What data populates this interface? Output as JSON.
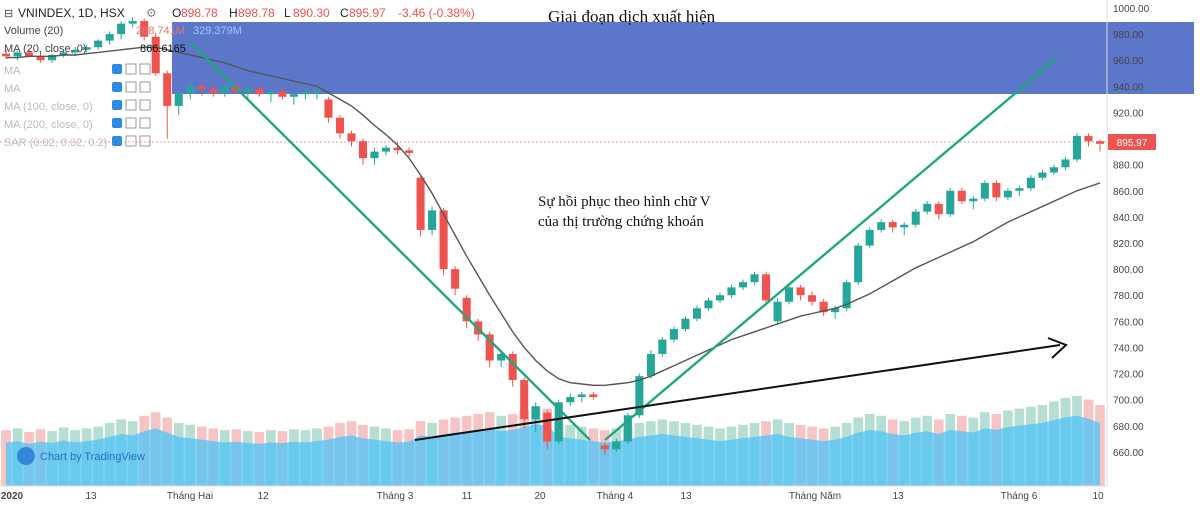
{
  "legend": {
    "symbol": "VNINDEX, 1D, HSX",
    "open_label": "O",
    "open": "898.78",
    "high_label": "H",
    "high": "898.78",
    "low_label": "L",
    "low": "890.30",
    "close_label": "C",
    "close": "895.97",
    "change": "-3.46 (-0.38%)",
    "volume_label": "Volume (20)",
    "vol_val1": "288.741M",
    "vol_val2": "329.379M",
    "ma_close_label": "MA (20, close, 0)",
    "ma_close_value": "866.6165",
    "indicators": [
      "MA",
      "MA",
      "MA (100, close, 0)",
      "MA (200, close, 0)",
      "SAR (0.02, 0.02, 0.2)"
    ]
  },
  "annotations": {
    "top_title": "Giai đoạn dịch xuất hiện",
    "v_line1": "Sự hồi phục theo hình chữ V",
    "v_line2": "của thị trường chứng khoán"
  },
  "watermark": "Chart by TradingView",
  "price_tag": "895.97",
  "colors": {
    "up": "#26a69a",
    "down": "#ef5350",
    "band": "#3f5fbf",
    "trend": "#1fa87e",
    "ma": "#555555",
    "volume": "#4fc3f7",
    "price_line": "#ef9a9a"
  },
  "chart_data": {
    "type": "candlestick",
    "ylim": [
      640,
      1000
    ],
    "y_ticks": [
      "660.00",
      "680.00",
      "700.00",
      "720.00",
      "740.00",
      "760.00",
      "780.00",
      "800.00",
      "820.00",
      "840.00",
      "860.00",
      "880.00",
      "900.00",
      "920.00",
      "940.00",
      "960.00",
      "980.00",
      "1000.00"
    ],
    "x_ticks": [
      "2020",
      "13",
      "Tháng Hai",
      "12",
      "Tháng 3",
      "11",
      "20",
      "Tháng 4",
      "13",
      "Tháng Năm",
      "13",
      "Tháng 6",
      "10"
    ],
    "candles": [
      [
        965,
        968,
        961,
        963
      ],
      [
        963,
        967,
        960,
        966
      ],
      [
        966,
        969,
        962,
        963
      ],
      [
        963,
        966,
        958,
        960
      ],
      [
        960,
        965,
        958,
        964
      ],
      [
        964,
        968,
        962,
        966
      ],
      [
        966,
        970,
        963,
        968
      ],
      [
        968,
        972,
        966,
        970
      ],
      [
        970,
        976,
        968,
        975
      ],
      [
        975,
        982,
        972,
        980
      ],
      [
        980,
        990,
        976,
        988
      ],
      [
        988,
        993,
        985,
        990
      ],
      [
        990,
        992,
        975,
        978
      ],
      [
        978,
        980,
        948,
        950
      ],
      [
        950,
        952,
        900,
        925
      ],
      [
        925,
        937,
        918,
        935
      ],
      [
        935,
        942,
        930,
        940
      ],
      [
        940,
        944,
        933,
        938
      ],
      [
        938,
        941,
        932,
        935
      ],
      [
        935,
        942,
        932,
        940
      ],
      [
        940,
        942,
        934,
        936
      ],
      [
        936,
        940,
        930,
        938
      ],
      [
        938,
        940,
        932,
        934
      ],
      [
        934,
        938,
        928,
        936
      ],
      [
        936,
        939,
        930,
        932
      ],
      [
        932,
        936,
        926,
        934
      ],
      [
        934,
        938,
        930,
        936
      ],
      [
        935,
        938,
        930,
        937
      ],
      [
        930,
        932,
        912,
        916
      ],
      [
        916,
        918,
        900,
        904
      ],
      [
        904,
        906,
        894,
        898
      ],
      [
        898,
        900,
        880,
        885
      ],
      [
        885,
        893,
        880,
        890
      ],
      [
        890,
        895,
        887,
        893
      ],
      [
        893,
        897,
        888,
        891
      ],
      [
        891,
        893,
        886,
        889
      ],
      [
        870,
        872,
        825,
        830
      ],
      [
        830,
        848,
        826,
        845
      ],
      [
        845,
        847,
        795,
        800
      ],
      [
        800,
        802,
        780,
        785
      ],
      [
        778,
        780,
        755,
        760
      ],
      [
        760,
        762,
        745,
        750
      ],
      [
        750,
        752,
        725,
        730
      ],
      [
        730,
        738,
        725,
        735
      ],
      [
        735,
        737,
        710,
        715
      ],
      [
        715,
        717,
        678,
        685
      ],
      [
        685,
        698,
        675,
        695
      ],
      [
        690,
        692,
        662,
        668
      ],
      [
        668,
        700,
        666,
        698
      ],
      [
        698,
        705,
        695,
        702
      ],
      [
        702,
        706,
        698,
        704
      ],
      [
        704,
        706,
        700,
        702
      ],
      [
        665,
        667,
        658,
        662
      ],
      [
        662,
        670,
        660,
        668
      ],
      [
        668,
        690,
        666,
        688
      ],
      [
        688,
        720,
        686,
        718
      ],
      [
        718,
        738,
        716,
        735
      ],
      [
        735,
        748,
        733,
        746
      ],
      [
        746,
        756,
        744,
        754
      ],
      [
        754,
        764,
        752,
        762
      ],
      [
        762,
        772,
        760,
        770
      ],
      [
        770,
        778,
        768,
        776
      ],
      [
        776,
        782,
        774,
        780
      ],
      [
        780,
        788,
        778,
        786
      ],
      [
        786,
        792,
        784,
        790
      ],
      [
        790,
        798,
        788,
        796
      ],
      [
        796,
        798,
        772,
        776
      ],
      [
        760,
        778,
        758,
        775
      ],
      [
        775,
        788,
        773,
        786
      ],
      [
        786,
        788,
        776,
        780
      ],
      [
        780,
        783,
        772,
        775
      ],
      [
        775,
        777,
        764,
        767
      ],
      [
        767,
        772,
        762,
        770
      ],
      [
        770,
        792,
        768,
        790
      ],
      [
        790,
        820,
        788,
        818
      ],
      [
        818,
        832,
        816,
        830
      ],
      [
        830,
        838,
        828,
        836
      ],
      [
        836,
        838,
        828,
        832
      ],
      [
        832,
        836,
        826,
        834
      ],
      [
        834,
        846,
        832,
        844
      ],
      [
        844,
        852,
        842,
        850
      ],
      [
        850,
        852,
        838,
        842
      ],
      [
        842,
        862,
        840,
        860
      ],
      [
        860,
        862,
        850,
        852
      ],
      [
        852,
        856,
        846,
        854
      ],
      [
        854,
        868,
        852,
        866
      ],
      [
        866,
        868,
        852,
        855
      ],
      [
        855,
        862,
        853,
        860
      ],
      [
        860,
        864,
        856,
        862
      ],
      [
        862,
        872,
        860,
        870
      ],
      [
        870,
        876,
        868,
        874
      ],
      [
        874,
        880,
        872,
        878
      ],
      [
        878,
        886,
        876,
        884
      ],
      [
        884,
        904,
        882,
        902
      ],
      [
        902,
        904,
        894,
        898
      ],
      [
        898,
        899,
        890,
        896
      ]
    ],
    "ma20": [
      962,
      962,
      963,
      963,
      963,
      964,
      964,
      965,
      966,
      967,
      968,
      969,
      970,
      970,
      968,
      966,
      964,
      962,
      960,
      958,
      955,
      952,
      950,
      948,
      946,
      944,
      942,
      940,
      935,
      930,
      925,
      918,
      910,
      903,
      895,
      885,
      872,
      858,
      842,
      826,
      810,
      795,
      780,
      766,
      752,
      740,
      730,
      722,
      716,
      713,
      712,
      711,
      711,
      712,
      713,
      715,
      718,
      722,
      726,
      730,
      734,
      738,
      742,
      746,
      749,
      752,
      755,
      758,
      761,
      764,
      766,
      768,
      770,
      773,
      777,
      781,
      786,
      791,
      796,
      801,
      805,
      809,
      813,
      817,
      821,
      826,
      831,
      836,
      840,
      844,
      848,
      852,
      856,
      860,
      863,
      866
    ],
    "volume": [
      62,
      64,
      60,
      63,
      61,
      65,
      62,
      64,
      66,
      70,
      74,
      72,
      78,
      82,
      76,
      70,
      68,
      66,
      64,
      62,
      63,
      61,
      60,
      62,
      61,
      63,
      62,
      64,
      66,
      70,
      72,
      68,
      66,
      64,
      62,
      63,
      72,
      70,
      74,
      76,
      78,
      80,
      82,
      78,
      80,
      84,
      88,
      86,
      70,
      68,
      66,
      64,
      62,
      64,
      66,
      70,
      72,
      74,
      72,
      70,
      68,
      66,
      64,
      66,
      68,
      70,
      72,
      74,
      70,
      68,
      66,
      64,
      66,
      70,
      76,
      80,
      78,
      74,
      72,
      76,
      78,
      74,
      80,
      78,
      76,
      82,
      80,
      84,
      86,
      88,
      90,
      94,
      98,
      100,
      96,
      90
    ]
  }
}
